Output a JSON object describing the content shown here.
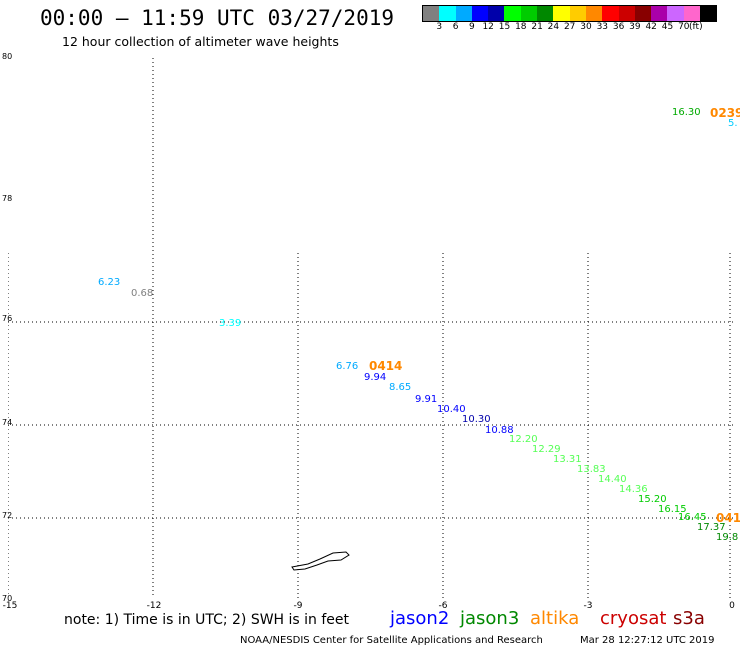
{
  "header": {
    "title": "00:00 – 11:59 UTC 03/27/2019",
    "subtitle": "12 hour collection of altimeter wave heights"
  },
  "colorbar": {
    "colors": [
      "#808080",
      "#00ffff",
      "#00aaff",
      "#0000ff",
      "#0000aa",
      "#00ff00",
      "#00cc00",
      "#008800",
      "#ffff00",
      "#ffcc00",
      "#ff8800",
      "#ff0000",
      "#cc0000",
      "#880000",
      "#aa00aa",
      "#cc66ff",
      "#ff66cc",
      "#000000"
    ],
    "labels": [
      "3",
      "6",
      "9",
      "12",
      "15",
      "18",
      "21",
      "24",
      "27",
      "30",
      "33",
      "36",
      "39",
      "42",
      "45",
      "70",
      "(ft)"
    ]
  },
  "axes": {
    "lat_labels": [
      "80",
      "78",
      "76",
      "74",
      "72",
      "70"
    ],
    "lon_labels": [
      "-15",
      "-12",
      "-9",
      "-6",
      "-3",
      "0"
    ]
  },
  "legend": {
    "note": "note:  1) Time is in UTC;  2) SWH is in feet",
    "satellites": [
      {
        "name": "jason2",
        "color": "#0000ff"
      },
      {
        "name": "jason3",
        "color": "#008800"
      },
      {
        "name": "altika",
        "color": "#ff8800"
      },
      {
        "name": "cryosat",
        "color": "#cc0000"
      },
      {
        "name": "s3a",
        "color": "#880000"
      }
    ]
  },
  "footer": {
    "left": "NOAA/NESDIS Center for Satellite Applications and Research",
    "right": "Mar 28 12:27:12 UTC 2019"
  },
  "observations": [
    {
      "value": "6.23",
      "color": "#00aaff"
    },
    {
      "value": "0.68",
      "color": "#808080"
    },
    {
      "value": "3.39",
      "color": "#00ffff"
    },
    {
      "value": "6.76",
      "color": "#00aaff"
    },
    {
      "value": "9.94",
      "color": "#0000ff"
    },
    {
      "value": "8.65",
      "color": "#00aaff"
    },
    {
      "value": "9.91",
      "color": "#0000ff"
    },
    {
      "value": "10.40",
      "color": "#0000ff"
    },
    {
      "value": "10.30",
      "color": "#0000aa"
    },
    {
      "value": "10.88",
      "color": "#0000ff"
    },
    {
      "value": "12.20",
      "color": "#55ff55"
    },
    {
      "value": "12.29",
      "color": "#55ff55"
    },
    {
      "value": "13.31",
      "color": "#55ff55"
    },
    {
      "value": "13.83",
      "color": "#55ff55"
    },
    {
      "value": "14.40",
      "color": "#55ff55"
    },
    {
      "value": "14.36",
      "color": "#55ff55"
    },
    {
      "value": "15.20",
      "color": "#00cc00"
    },
    {
      "value": "16.15",
      "color": "#00cc00"
    },
    {
      "value": "16.45",
      "color": "#00cc00"
    },
    {
      "value": "17.37",
      "color": "#008800"
    },
    {
      "value": "19.8",
      "color": "#008800"
    },
    {
      "value": "16.30",
      "color": "#00aa00"
    },
    {
      "value": "5.",
      "color": "#00ccff"
    }
  ],
  "pass_labels": [
    {
      "value": "0414",
      "color": "#ff8800"
    },
    {
      "value": "0239",
      "color": "#ff8800"
    },
    {
      "value": "041",
      "color": "#ff8800"
    }
  ]
}
